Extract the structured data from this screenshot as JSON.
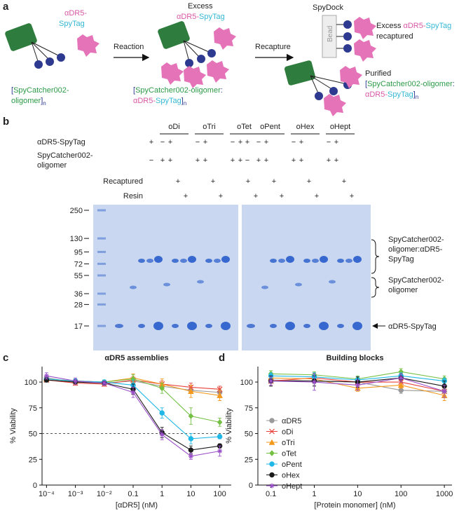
{
  "panel_a": {
    "letter": "a",
    "tag_label": [
      "αDR5-",
      "SpyTag"
    ],
    "oligomer_label": [
      "[",
      "SpyCatcher002-",
      "oligomer",
      "]",
      "n"
    ],
    "step_1": "Reaction",
    "excess_label": [
      "Excess",
      "αDR5-",
      "SpyTag"
    ],
    "complex_label": [
      "[",
      "SpyCatcher002-oligomer",
      ":",
      "αDR5-",
      "SpyTag",
      "]",
      "n"
    ],
    "step_2": "Recapture",
    "spydock": "SpyDock",
    "bead": "Bead",
    "recaptured_label": [
      "Excess",
      "αDR5-",
      "SpyTag",
      "recaptured"
    ],
    "purified_label": [
      "Purified",
      "[",
      "SpyCatcher002-oligomer",
      ":",
      "αDR5-",
      "SpyTag",
      "]",
      "n"
    ]
  },
  "panel_b": {
    "letter": "b",
    "groups": [
      "oDi",
      "oTri",
      "oTet",
      "oPent",
      "oHex",
      "oHept"
    ],
    "row_labels": [
      [
        "αDR5-SpyTag"
      ],
      [
        "SpyCatcher002-",
        "oligomer"
      ],
      [
        "Recaptured"
      ],
      [
        "Resin"
      ]
    ],
    "signs": [
      [
        null,
        "+",
        "−",
        "+",
        null,
        null,
        "−",
        "+",
        null,
        null,
        "−",
        "+",
        null,
        null,
        "+",
        "−",
        "+",
        null,
        null,
        "−",
        "+",
        null,
        null,
        "−",
        "+",
        null,
        null
      ],
      [
        null,
        "−",
        "+",
        "+",
        null,
        null,
        "+",
        "+",
        null,
        null,
        "+",
        "+",
        null,
        null,
        "−",
        "+",
        "+",
        null,
        null,
        "+",
        "+",
        null,
        null,
        "+",
        "+",
        null,
        null
      ],
      [
        null,
        null,
        null,
        null,
        "+",
        null,
        null,
        null,
        "+",
        null,
        null,
        null,
        "+",
        null,
        null,
        null,
        null,
        "+",
        null,
        null,
        null,
        "+",
        null,
        null,
        null,
        "+",
        null
      ],
      [
        null,
        null,
        null,
        null,
        null,
        "+",
        null,
        null,
        null,
        "+",
        null,
        null,
        null,
        "+",
        null,
        null,
        null,
        null,
        "+",
        null,
        null,
        null,
        "+",
        null,
        null,
        null,
        "+"
      ]
    ],
    "ladder": [
      250,
      130,
      95,
      72,
      55,
      36,
      28,
      17
    ],
    "band_labels": [
      [
        "SpyCatcher002-",
        "oligomer:αDR5-",
        "SpyTag"
      ],
      [
        "SpyCatcher002-",
        "oligomer"
      ],
      [
        "αDR5-SpyTag"
      ]
    ]
  },
  "chart_data": [
    {
      "type": "line",
      "letter": "c",
      "title": "αDR5 assemblies",
      "x_label": "[αDR5] (nM)",
      "y_label": "% Viability",
      "xscale": "log",
      "xlim": [
        7e-05,
        250
      ],
      "ylim": [
        0,
        115
      ],
      "xticks": [
        {
          "value": 0.0001,
          "label": "10⁻⁴"
        },
        {
          "value": 0.001,
          "label": "10⁻³"
        },
        {
          "value": 0.01,
          "label": "10⁻²"
        },
        0.1,
        1,
        10,
        100
      ],
      "yticks": [
        0,
        25,
        50,
        75,
        100
      ],
      "hline": 50,
      "x": [
        0.0001,
        0.001,
        0.01,
        0.1,
        1,
        10,
        100
      ],
      "series": [
        {
          "color": "#9a9a9a",
          "marker": "circle",
          "values": [
            104,
            100,
            99,
            101,
            96,
            92,
            90
          ],
          "errors": [
            2,
            2,
            2,
            2,
            3,
            3,
            3
          ]
        },
        {
          "color": "#e8423b",
          "marker": "x",
          "values": [
            102,
            99,
            98,
            102,
            98,
            95,
            93
          ],
          "errors": [
            2,
            2,
            2,
            3,
            3,
            4,
            3
          ]
        },
        {
          "color": "#f39a1e",
          "marker": "triangle",
          "values": [
            103,
            101,
            100,
            104,
            98,
            91,
            87
          ],
          "errors": [
            2,
            2,
            2,
            4,
            5,
            6,
            5
          ]
        },
        {
          "color": "#74c043",
          "marker": "diamond",
          "values": [
            103,
            101,
            100,
            103,
            94,
            67,
            61
          ],
          "errors": [
            2,
            2,
            2,
            4,
            5,
            8,
            4
          ]
        },
        {
          "color": "#1fb8e6",
          "marker": "circle",
          "values": [
            103,
            101,
            100,
            97,
            70,
            45,
            47
          ],
          "errors": [
            3,
            2,
            2,
            5,
            5,
            5,
            2
          ]
        },
        {
          "color": "#1a1a1a",
          "marker": "circle",
          "values": [
            102,
            100,
            99,
            93,
            51,
            34,
            38
          ],
          "errors": [
            2,
            2,
            2,
            5,
            5,
            4,
            2
          ]
        },
        {
          "color": "#9a4fc9",
          "marker": "asterisk",
          "values": [
            106,
            101,
            99,
            90,
            49,
            28,
            33
          ],
          "errors": [
            3,
            3,
            2,
            5,
            5,
            3,
            5
          ]
        }
      ]
    },
    {
      "type": "line",
      "letter": "d",
      "title": "Building blocks",
      "x_label": "[Protein monomer] (nM)",
      "y_label": "% Viability",
      "xscale": "log",
      "xlim": [
        0.05,
        1500
      ],
      "ylim": [
        0,
        115
      ],
      "xticks": [
        0.1,
        1,
        10,
        100,
        1000
      ],
      "yticks": [
        0,
        25,
        50,
        75,
        100
      ],
      "legend": "left",
      "x": [
        0.1,
        1,
        10,
        100,
        1000
      ],
      "series": [
        {
          "name": "αDR5",
          "color": "#9a9a9a",
          "marker": "circle",
          "values": [
            102,
            101,
            100,
            92,
            91
          ],
          "errors": [
            3,
            4,
            3,
            3,
            4
          ]
        },
        {
          "name": "oDi",
          "color": "#e8423b",
          "marker": "x",
          "values": [
            101,
            104,
            100,
            100,
            91
          ],
          "errors": [
            4,
            5,
            4,
            4,
            5
          ]
        },
        {
          "name": "oTri",
          "color": "#f39a1e",
          "marker": "triangle",
          "values": [
            104,
            103,
            94,
            97,
            87
          ],
          "errors": [
            4,
            4,
            3,
            3,
            5
          ]
        },
        {
          "name": "oTet",
          "color": "#74c043",
          "marker": "diamond",
          "values": [
            108,
            107,
            103,
            110,
            103
          ],
          "errors": [
            3,
            3,
            3,
            3,
            3
          ]
        },
        {
          "name": "oPent",
          "color": "#1fb8e6",
          "marker": "circle",
          "values": [
            106,
            105,
            102,
            106,
            101
          ],
          "errors": [
            3,
            4,
            3,
            3,
            3
          ]
        },
        {
          "name": "oHex",
          "color": "#1a1a1a",
          "marker": "circle",
          "values": [
            101,
            101,
            100,
            104,
            96
          ],
          "errors": [
            5,
            5,
            5,
            4,
            5
          ]
        },
        {
          "name": "oHept",
          "color": "#9a4fc9",
          "marker": "asterisk",
          "values": [
            101,
            100,
            97,
            104,
            91
          ],
          "errors": [
            4,
            8,
            5,
            4,
            6
          ]
        }
      ]
    }
  ]
}
